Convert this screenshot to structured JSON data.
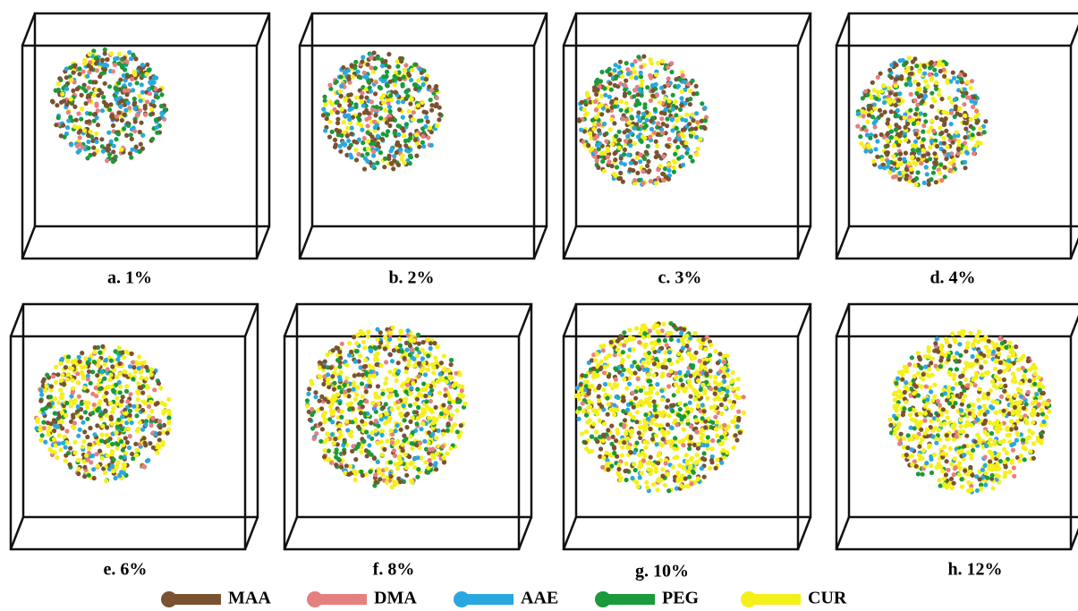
{
  "panels": [
    {
      "label": "a. 1%"
    },
    {
      "label": "b. 2%"
    },
    {
      "label": "c. 3%"
    },
    {
      "label": "d. 4%"
    },
    {
      "label": "e. 6%"
    },
    {
      "label": "f. 8%"
    },
    {
      "label": "g. 10%"
    },
    {
      "label": "h. 12%"
    }
  ],
  "legend": [
    {
      "name": "MAA",
      "color": "#7a5230"
    },
    {
      "name": "DMA",
      "color": "#e58080"
    },
    {
      "name": "AAE",
      "color": "#29a8e0"
    },
    {
      "name": "PEG",
      "color": "#1a9a3a"
    },
    {
      "name": "CUR",
      "color": "#f5f01a"
    }
  ]
}
